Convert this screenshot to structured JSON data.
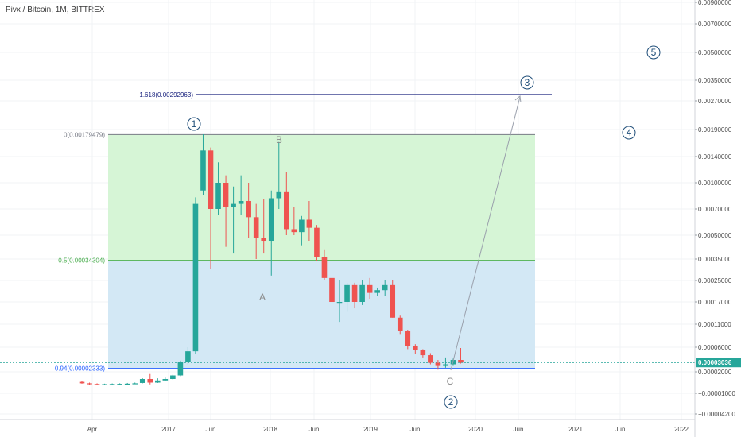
{
  "title": "Pivx / Bitcoin, 1M, BITTREX",
  "chart_data": {
    "type": "candlestick",
    "symbol": "Pivx / Bitcoin",
    "interval": "1M",
    "exchange": "BITTREX",
    "y_scale": "log",
    "ylim": [
      -4.2e-05,
      0.009
    ],
    "y_ticks": [
      {
        "value": 0.009,
        "label": "0.00900000"
      },
      {
        "value": 0.007,
        "label": "0.00700000"
      },
      {
        "value": 0.005,
        "label": "0.00500000"
      },
      {
        "value": 0.0035,
        "label": "0.00350000"
      },
      {
        "value": 0.0027,
        "label": "0.00270000"
      },
      {
        "value": 0.0019,
        "label": "0.00190000"
      },
      {
        "value": 0.0014,
        "label": "0.00140000"
      },
      {
        "value": 0.001,
        "label": "0.00100000"
      },
      {
        "value": 0.0007,
        "label": "0.00070000"
      },
      {
        "value": 0.0005,
        "label": "0.00050000"
      },
      {
        "value": 0.00035,
        "label": "0.00035000"
      },
      {
        "value": 0.00025,
        "label": "0.00025000"
      },
      {
        "value": 0.00017,
        "label": "0.00017000"
      },
      {
        "value": 0.00011,
        "label": "0.00011000"
      },
      {
        "value": 6e-05,
        "label": "0.00006000"
      },
      {
        "value": 2e-05,
        "label": "0.00002000"
      },
      {
        "value": -1e-05,
        "label": "−0.00001000"
      },
      {
        "value": -4.2e-05,
        "label": "−0.00004200"
      }
    ],
    "x_ticks": [
      "Apr",
      "2017",
      "Jun",
      "2018",
      "Jun",
      "2019",
      "Jun",
      "2020",
      "Jun",
      "2021",
      "Jun",
      "2022"
    ],
    "last_price": {
      "value": 3.036e-05,
      "label": "0.00003036"
    },
    "candles": [
      {
        "o": 6e-06,
        "h": 7.5e-06,
        "l": 3.5e-06,
        "c": 4e-06
      },
      {
        "o": 4e-06,
        "h": 5e-06,
        "l": 2e-06,
        "c": 3e-06
      },
      {
        "o": 3e-06,
        "h": 4e-06,
        "l": 1.5e-06,
        "c": 2.5e-06
      },
      {
        "o": 2.5e-06,
        "h": 3.5e-06,
        "l": 1.8e-06,
        "c": 2.8e-06
      },
      {
        "o": 2.8e-06,
        "h": 3.8e-06,
        "l": 2e-06,
        "c": 3e-06
      },
      {
        "o": 3e-06,
        "h": 4e-06,
        "l": 2.2e-06,
        "c": 3.2e-06
      },
      {
        "o": 3.2e-06,
        "h": 4.5e-06,
        "l": 2.5e-06,
        "c": 3.5e-06
      },
      {
        "o": 3.5e-06,
        "h": 5e-06,
        "l": 2.8e-06,
        "c": 4e-06
      },
      {
        "o": 4.5e-06,
        "h": 1.1e-05,
        "l": 4e-06,
        "c": 1e-05
      },
      {
        "o": 1e-05,
        "h": 1.7e-05,
        "l": 2.5e-06,
        "c": 5e-06
      },
      {
        "o": 5e-06,
        "h": 1.1e-05,
        "l": 4.5e-06,
        "c": 8e-06
      },
      {
        "o": 8e-06,
        "h": 1.2e-05,
        "l": 7e-06,
        "c": 1e-05
      },
      {
        "o": 1e-05,
        "h": 1.6e-05,
        "l": 9e-06,
        "c": 1.5e-05
      },
      {
        "o": 1.5e-05,
        "h": 3.3e-05,
        "l": 1.4e-05,
        "c": 3.1e-05
      },
      {
        "o": 3.1e-05,
        "h": 6e-05,
        "l": 2.8e-05,
        "c": 5e-05
      },
      {
        "o": 5e-05,
        "h": 0.00082,
        "l": 4.5e-05,
        "c": 0.00075
      },
      {
        "o": 0.0009,
        "h": 0.0018,
        "l": 0.00085,
        "c": 0.0015
      },
      {
        "o": 0.0015,
        "h": 0.00155,
        "l": 0.0003,
        "c": 0.0007
      },
      {
        "o": 0.0007,
        "h": 0.0013,
        "l": 0.00065,
        "c": 0.001
      },
      {
        "o": 0.001,
        "h": 0.0011,
        "l": 0.00042,
        "c": 0.00072
      },
      {
        "o": 0.00072,
        "h": 0.00095,
        "l": 0.00038,
        "c": 0.00075
      },
      {
        "o": 0.00075,
        "h": 0.0011,
        "l": 0.00065,
        "c": 0.00078
      },
      {
        "o": 0.00078,
        "h": 0.001,
        "l": 0.00048,
        "c": 0.00063
      },
      {
        "o": 0.00063,
        "h": 0.00075,
        "l": 0.00035,
        "c": 0.00048
      },
      {
        "o": 0.00048,
        "h": 0.0008,
        "l": 0.00038,
        "c": 0.00046
      },
      {
        "o": 0.00046,
        "h": 0.0009,
        "l": 0.00027,
        "c": 0.00081
      },
      {
        "o": 0.00081,
        "h": 0.00165,
        "l": 0.0007,
        "c": 0.00088
      },
      {
        "o": 0.00088,
        "h": 0.00115,
        "l": 0.0005,
        "c": 0.00054
      },
      {
        "o": 0.00054,
        "h": 0.00072,
        "l": 0.0005,
        "c": 0.00052
      },
      {
        "o": 0.00052,
        "h": 0.00064,
        "l": 0.00043,
        "c": 0.00061
      },
      {
        "o": 0.00061,
        "h": 0.00078,
        "l": 0.00046,
        "c": 0.00055
      },
      {
        "o": 0.00055,
        "h": 0.00057,
        "l": 0.00034,
        "c": 0.00036
      },
      {
        "o": 0.00036,
        "h": 0.0004,
        "l": 0.00025,
        "c": 0.00026
      },
      {
        "o": 0.00026,
        "h": 0.0003,
        "l": 0.00017,
        "c": 0.00017
      },
      {
        "o": 0.00017,
        "h": 0.00025,
        "l": 0.000115,
        "c": 0.00017
      },
      {
        "o": 0.00017,
        "h": 0.00024,
        "l": 0.00014,
        "c": 0.00023
      },
      {
        "o": 0.00023,
        "h": 0.00024,
        "l": 0.00015,
        "c": 0.00017
      },
      {
        "o": 0.00017,
        "h": 0.00025,
        "l": 0.00016,
        "c": 0.00023
      },
      {
        "o": 0.00023,
        "h": 0.00026,
        "l": 0.00018,
        "c": 0.0002
      },
      {
        "o": 0.0002,
        "h": 0.00022,
        "l": 0.00019,
        "c": 0.00021
      },
      {
        "o": 0.00021,
        "h": 0.00025,
        "l": 0.00019,
        "c": 0.00023
      },
      {
        "o": 0.00023,
        "h": 0.00025,
        "l": 0.000125,
        "c": 0.000125
      },
      {
        "o": 0.000125,
        "h": 0.00013,
        "l": 8.5e-05,
        "c": 9.2e-05
      },
      {
        "o": 9.2e-05,
        "h": 9.5e-05,
        "l": 5.5e-05,
        "c": 6.2e-05
      },
      {
        "o": 6.2e-05,
        "h": 6.5e-05,
        "l": 4.5e-05,
        "c": 5.3e-05
      },
      {
        "o": 5.3e-05,
        "h": 5.5e-05,
        "l": 3.8e-05,
        "c": 4.2e-05
      },
      {
        "o": 4.2e-05,
        "h": 4.6e-05,
        "l": 2.8e-05,
        "c": 3e-05
      },
      {
        "o": 3e-05,
        "h": 3.4e-05,
        "l": 2.2e-05,
        "c": 2.6e-05
      },
      {
        "o": 2.6e-05,
        "h": 3.8e-05,
        "l": 2.4e-05,
        "c": 2.8e-05
      },
      {
        "o": 2.8e-05,
        "h": 3.6e-05,
        "l": 2.6e-05,
        "c": 3.4e-05
      },
      {
        "o": 3.4e-05,
        "h": 5.8e-05,
        "l": 2.9e-05,
        "c": 3.036e-05
      }
    ],
    "fib_levels": [
      {
        "label": "1.618(0.00292963)",
        "value": 0.00292963,
        "color": "#1a237e"
      },
      {
        "label": "0(0.00179479)",
        "value": 0.00179479,
        "color": "#787b86"
      },
      {
        "label": "0.5(0.00034304)",
        "value": 0.00034304,
        "color": "#4caf50"
      },
      {
        "label": "0.94(0.00002333)",
        "value": 2.333e-05,
        "color": "#2962ff"
      }
    ],
    "wave_labels": [
      "1",
      "2",
      "3",
      "4",
      "5"
    ],
    "correction_labels": [
      "A",
      "B",
      "C"
    ],
    "colors": {
      "up": "#26a69a",
      "down": "#ef5350",
      "upper_zone": "#d6f5d6",
      "lower_zone": "#d3e8f5",
      "wave_circle": "#1f4e79",
      "projection_line": "#9aa0ac",
      "last_price_badge": "#26a69a",
      "grid": "#f0f3f6",
      "axis_text": "#4a4a4a"
    }
  }
}
